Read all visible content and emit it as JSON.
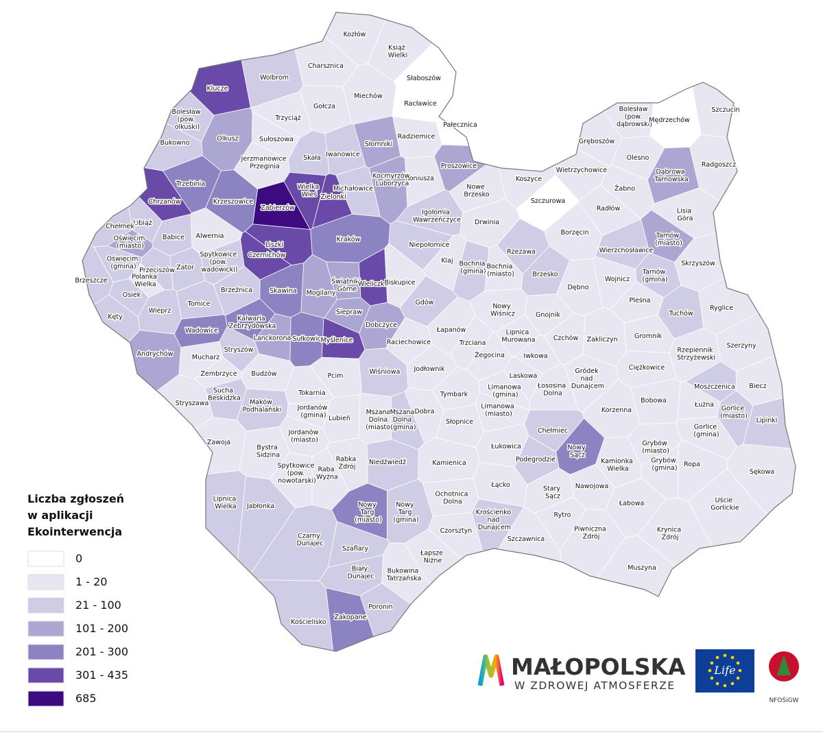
{
  "map": {
    "legend": {
      "title": [
        "Liczba zgłoszeń",
        "w aplikacji",
        "Ekointerwencja"
      ],
      "items": [
        {
          "label": "0",
          "color": "#ffffff"
        },
        {
          "label": "1 - 20",
          "color": "#e7e6f1"
        },
        {
          "label": "21 - 100",
          "color": "#cfcce6"
        },
        {
          "label": "101 - 200",
          "color": "#aba6d2"
        },
        {
          "label": "201 - 300",
          "color": "#8c83c3"
        },
        {
          "label": "301 - 435",
          "color": "#6a4aa9"
        },
        {
          "label": "685",
          "color": "#3d0a80"
        }
      ]
    },
    "branding": {
      "name": "MAŁOPOLSKA",
      "tagline": "W ZDROWEJ ATMOSFERZE",
      "eu": "Life",
      "nfos": "NFOŚiGW"
    },
    "regions": [
      {
        "name": "Kozłów",
        "color": "#e7e6f1"
      },
      {
        "name": "Książ Wielki",
        "color": "#e7e6f1"
      },
      {
        "name": "Charsznica",
        "color": "#e7e6f1"
      },
      {
        "name": "Słaboszów",
        "color": "#ffffff"
      },
      {
        "name": "Wolbrom",
        "color": "#cfcce6"
      },
      {
        "name": "Klucze",
        "color": "#6a4aa9"
      },
      {
        "name": "Miechów",
        "color": "#e7e6f1"
      },
      {
        "name": "Racławice",
        "color": "#ffffff"
      },
      {
        "name": "Gołcza",
        "color": "#e7e6f1"
      },
      {
        "name": "Bolesław (pow. olkuski)",
        "color": "#cfcce6"
      },
      {
        "name": "Trzyciąż",
        "color": "#e7e6f1"
      },
      {
        "name": "Pałecznica",
        "color": "#ffffff"
      },
      {
        "name": "Bolesław (pow. dąbrowski)",
        "color": "#e7e6f1"
      },
      {
        "name": "Mędrzechów",
        "color": "#ffffff"
      },
      {
        "name": "Szczucin",
        "color": "#e7e6f1"
      },
      {
        "name": "Radziemice",
        "color": "#e7e6f1"
      },
      {
        "name": "Olkusz",
        "color": "#aba6d2"
      },
      {
        "name": "Sułoszowa",
        "color": "#e7e6f1"
      },
      {
        "name": "Słomniki",
        "color": "#aba6d2"
      },
      {
        "name": "Bukowno",
        "color": "#cfcce6"
      },
      {
        "name": "Gręboszów",
        "color": "#e7e6f1"
      },
      {
        "name": "Olesno",
        "color": "#e7e6f1"
      },
      {
        "name": "Skała",
        "color": "#cfcce6"
      },
      {
        "name": "Iwanowice",
        "color": "#cfcce6"
      },
      {
        "name": "Jerzmanowice Przeginia",
        "color": "#e7e6f1"
      },
      {
        "name": "Proszowice",
        "color": "#aba6d2"
      },
      {
        "name": "Dąbrowa Tarnowska",
        "color": "#aba6d2"
      },
      {
        "name": "Radgoszcz",
        "color": "#e7e6f1"
      },
      {
        "name": "Wietrzychowice",
        "color": "#e7e6f1"
      },
      {
        "name": "Koniusza",
        "color": "#e7e6f1"
      },
      {
        "name": "Kocmyrzów Luborzyca",
        "color": "#aba6d2"
      },
      {
        "name": "Trzebinia",
        "color": "#8c83c3"
      },
      {
        "name": "Wielka Wieś",
        "color": "#6a4aa9"
      },
      {
        "name": "Michałowice",
        "color": "#cfcce6"
      },
      {
        "name": "Nowe Brzesko",
        "color": "#e7e6f1"
      },
      {
        "name": "Koszyce",
        "color": "#e7e6f1"
      },
      {
        "name": "Żabno",
        "color": "#e7e6f1"
      },
      {
        "name": "Chrzanów",
        "color": "#6a4aa9"
      },
      {
        "name": "Krzeszowice",
        "color": "#8c83c3"
      },
      {
        "name": "Zabierzów",
        "color": "#3d0a80"
      },
      {
        "name": "Zielonki",
        "color": "#6a4aa9"
      },
      {
        "name": "Szczurowa",
        "color": "#ffffff"
      },
      {
        "name": "Radłów",
        "color": "#e7e6f1"
      },
      {
        "name": "Lisia Góra",
        "color": "#e7e6f1"
      },
      {
        "name": "Igołomia Wawrzeńczyce",
        "color": "#cfcce6"
      },
      {
        "name": "Libiąż",
        "color": "#cfcce6"
      },
      {
        "name": "Chełmek",
        "color": "#cfcce6"
      },
      {
        "name": "Drwinia",
        "color": "#e7e6f1"
      },
      {
        "name": "Oświęcim (miasto)",
        "color": "#aba6d2"
      },
      {
        "name": "Alwernia",
        "color": "#e7e6f1"
      },
      {
        "name": "Babice",
        "color": "#cfcce6"
      },
      {
        "name": "Liszki",
        "color": "#6a4aa9"
      },
      {
        "name": "Kraków",
        "color": "#8c83c3"
      },
      {
        "name": "Borzęcin",
        "color": "#e7e6f1"
      },
      {
        "name": "Tarnów (miasto)",
        "color": "#aba6d2"
      },
      {
        "name": "Niepołomice",
        "color": "#cfcce6"
      },
      {
        "name": "Rzezawa",
        "color": "#cfcce6"
      },
      {
        "name": "Wierzchosławice",
        "color": "#cfcce6"
      },
      {
        "name": "Czernichów",
        "color": "#6a4aa9"
      },
      {
        "name": "Spytkowice (pow. wadowicki)",
        "color": "#cfcce6"
      },
      {
        "name": "Oświęcim (gmina)",
        "color": "#cfcce6"
      },
      {
        "name": "Zator",
        "color": "#cfcce6"
      },
      {
        "name": "Przeciszów",
        "color": "#cfcce6"
      },
      {
        "name": "Polanka Wielka",
        "color": "#e7e6f1"
      },
      {
        "name": "Klaj",
        "color": "#e7e6f1"
      },
      {
        "name": "Bochnia (gmina)",
        "color": "#cfcce6"
      },
      {
        "name": "Bochnia (miasto)",
        "color": "#e7e6f1"
      },
      {
        "name": "Brzesko",
        "color": "#cfcce6"
      },
      {
        "name": "Skrzyszów",
        "color": "#e7e6f1"
      },
      {
        "name": "Tarnów (gmina)",
        "color": "#cfcce6"
      },
      {
        "name": "Wojnicz",
        "color": "#e7e6f1"
      },
      {
        "name": "Brzeszcze",
        "color": "#cfcce6"
      },
      {
        "name": "Świątniki Górne",
        "color": "#aba6d2"
      },
      {
        "name": "Wieliczka",
        "color": "#6a4aa9"
      },
      {
        "name": "Biskupice",
        "color": "#e7e6f1"
      },
      {
        "name": "Dębno",
        "color": "#e7e6f1"
      },
      {
        "name": "Osiek",
        "color": "#cfcce6"
      },
      {
        "name": "Brzeźnica",
        "color": "#cfcce6"
      },
      {
        "name": "Skawina",
        "color": "#8c83c3"
      },
      {
        "name": "Mogilany",
        "color": "#aba6d2"
      },
      {
        "name": "Gdów",
        "color": "#cfcce6"
      },
      {
        "name": "Pleśna",
        "color": "#e7e6f1"
      },
      {
        "name": "Ryglice",
        "color": "#e7e6f1"
      },
      {
        "name": "Wieprz",
        "color": "#cfcce6"
      },
      {
        "name": "Tomice",
        "color": "#cfcce6"
      },
      {
        "name": "Nowy Wiśnicz",
        "color": "#e7e6f1"
      },
      {
        "name": "Gnojnik",
        "color": "#e7e6f1"
      },
      {
        "name": "Kęty",
        "color": "#cfcce6"
      },
      {
        "name": "Siepraw",
        "color": "#aba6d2"
      },
      {
        "name": "Tuchów",
        "color": "#cfcce6"
      },
      {
        "name": "Kalwaria Zebrzydowska",
        "color": "#8c83c3"
      },
      {
        "name": "Dobczyce",
        "color": "#aba6d2"
      },
      {
        "name": "Łapanów",
        "color": "#e7e6f1"
      },
      {
        "name": "Wadowice",
        "color": "#8c83c3"
      },
      {
        "name": "Lipnica Murowana",
        "color": "#e7e6f1"
      },
      {
        "name": "Czchów",
        "color": "#e7e6f1"
      },
      {
        "name": "Lanckorona",
        "color": "#aba6d2"
      },
      {
        "name": "Sułkowice",
        "color": "#8c83c3"
      },
      {
        "name": "Myślenice",
        "color": "#6a4aa9"
      },
      {
        "name": "Raciechowice",
        "color": "#e7e6f1"
      },
      {
        "name": "Trzciana",
        "color": "#e7e6f1"
      },
      {
        "name": "Zakliczyn",
        "color": "#e7e6f1"
      },
      {
        "name": "Gromnik",
        "color": "#e7e6f1"
      },
      {
        "name": "Rzepiennik Strzyżewski",
        "color": "#e7e6f1"
      },
      {
        "name": "Szerzyny",
        "color": "#e7e6f1"
      },
      {
        "name": "Stryszów",
        "color": "#cfcce6"
      },
      {
        "name": "Andrychów",
        "color": "#aba6d2"
      },
      {
        "name": "Żegocina",
        "color": "#e7e6f1"
      },
      {
        "name": "Iwkowa",
        "color": "#e7e6f1"
      },
      {
        "name": "Mucharz",
        "color": "#e7e6f1"
      },
      {
        "name": "Ciężkowice",
        "color": "#e7e6f1"
      },
      {
        "name": "Jodłownik",
        "color": "#e7e6f1"
      },
      {
        "name": "Wiśniowa",
        "color": "#cfcce6"
      },
      {
        "name": "Zembrzyce",
        "color": "#e7e6f1"
      },
      {
        "name": "Budzów",
        "color": "#e7e6f1"
      },
      {
        "name": "Pcim",
        "color": "#e7e6f1"
      },
      {
        "name": "Laskowa",
        "color": "#e7e6f1"
      },
      {
        "name": "Gródek nad Dunajcem",
        "color": "#e7e6f1"
      },
      {
        "name": "Łososina Dolna",
        "color": "#e7e6f1"
      },
      {
        "name": "Limanowa (gmina)",
        "color": "#e7e6f1"
      },
      {
        "name": "Moszczenica",
        "color": "#cfcce6"
      },
      {
        "name": "Biecz",
        "color": "#e7e6f1"
      },
      {
        "name": "Sucha Beskidzka",
        "color": "#cfcce6"
      },
      {
        "name": "Tokarnia",
        "color": "#e7e6f1"
      },
      {
        "name": "Tymbark",
        "color": "#e7e6f1"
      },
      {
        "name": "Bobowa",
        "color": "#e7e6f1"
      },
      {
        "name": "Łużna",
        "color": "#e7e6f1"
      },
      {
        "name": "Stryszawa",
        "color": "#e7e6f1"
      },
      {
        "name": "Maków Podhalański",
        "color": "#cfcce6"
      },
      {
        "name": "Jordanów (gmina)",
        "color": "#e7e6f1"
      },
      {
        "name": "Lubień",
        "color": "#e7e6f1"
      },
      {
        "name": "Mszana Dolna (miasto)",
        "color": "#e7e6f1"
      },
      {
        "name": "Mszana Dolna (gmina)",
        "color": "#cfcce6"
      },
      {
        "name": "Dobra",
        "color": "#e7e6f1"
      },
      {
        "name": "Limanowa (miasto)",
        "color": "#e7e6f1"
      },
      {
        "name": "Korzenna",
        "color": "#e7e6f1"
      },
      {
        "name": "Gorlice (miasto)",
        "color": "#cfcce6"
      },
      {
        "name": "Słopnice",
        "color": "#e7e6f1"
      },
      {
        "name": "Lipinki",
        "color": "#cfcce6"
      },
      {
        "name": "Gorlice (gmina)",
        "color": "#e7e6f1"
      },
      {
        "name": "Chełmiec",
        "color": "#cfcce6"
      },
      {
        "name": "Jordanów (miasto)",
        "color": "#e7e6f1"
      },
      {
        "name": "Zawoja",
        "color": "#e7e6f1"
      },
      {
        "name": "Łukowica",
        "color": "#e7e6f1"
      },
      {
        "name": "Nowy Sącz",
        "color": "#8c83c3"
      },
      {
        "name": "Grybów (miasto)",
        "color": "#e7e6f1"
      },
      {
        "name": "Bystra Sidzina",
        "color": "#e7e6f1"
      },
      {
        "name": "Kamienica",
        "color": "#e7e6f1"
      },
      {
        "name": "Niedźwiedź",
        "color": "#cfcce6"
      },
      {
        "name": "Rabka Zdrój",
        "color": "#e7e6f1"
      },
      {
        "name": "Podegrodzie",
        "color": "#cfcce6"
      },
      {
        "name": "Kamionka Wielka",
        "color": "#e7e6f1"
      },
      {
        "name": "Grybów (gmina)",
        "color": "#e7e6f1"
      },
      {
        "name": "Ropa",
        "color": "#e7e6f1"
      },
      {
        "name": "Spytkowice (pow. nowotarski)",
        "color": "#e7e6f1"
      },
      {
        "name": "Raba Wyżna",
        "color": "#e7e6f1"
      },
      {
        "name": "Sękowa",
        "color": "#e7e6f1"
      },
      {
        "name": "Łącko",
        "color": "#e7e6f1"
      },
      {
        "name": "Nawojowa",
        "color": "#e7e6f1"
      },
      {
        "name": "Ochotnica Dolna",
        "color": "#e7e6f1"
      },
      {
        "name": "Stary Sącz",
        "color": "#e7e6f1"
      },
      {
        "name": "Lipnica Wielka",
        "color": "#cfcce6"
      },
      {
        "name": "Jabłonka",
        "color": "#cfcce6"
      },
      {
        "name": "Nowy Targ (miasto)",
        "color": "#8c83c3"
      },
      {
        "name": "Nowy Targ (gmina)",
        "color": "#cfcce6"
      },
      {
        "name": "Łabowa",
        "color": "#e7e6f1"
      },
      {
        "name": "Uście Gorlickie",
        "color": "#e7e6f1"
      },
      {
        "name": "Rytro",
        "color": "#e7e6f1"
      },
      {
        "name": "Krościenko nad Dunajcem",
        "color": "#cfcce6"
      },
      {
        "name": "Czorsztyn",
        "color": "#e7e6f1"
      },
      {
        "name": "Piwniczna Zdrój",
        "color": "#e7e6f1"
      },
      {
        "name": "Krynica Zdrój",
        "color": "#e7e6f1"
      },
      {
        "name": "Szczawnica",
        "color": "#e7e6f1"
      },
      {
        "name": "Czarny Dunajec",
        "color": "#cfcce6"
      },
      {
        "name": "Szaflary",
        "color": "#cfcce6"
      },
      {
        "name": "Łapsze Niżne",
        "color": "#e7e6f1"
      },
      {
        "name": "Muszyna",
        "color": "#e7e6f1"
      },
      {
        "name": "Biały Dunajec",
        "color": "#cfcce6"
      },
      {
        "name": "Bukowina Tatrzańska",
        "color": "#e7e6f1"
      },
      {
        "name": "Poronin",
        "color": "#cfcce6"
      },
      {
        "name": "Kościelisko",
        "color": "#cfcce6"
      },
      {
        "name": "Zakopane",
        "color": "#8c83c3"
      }
    ]
  }
}
